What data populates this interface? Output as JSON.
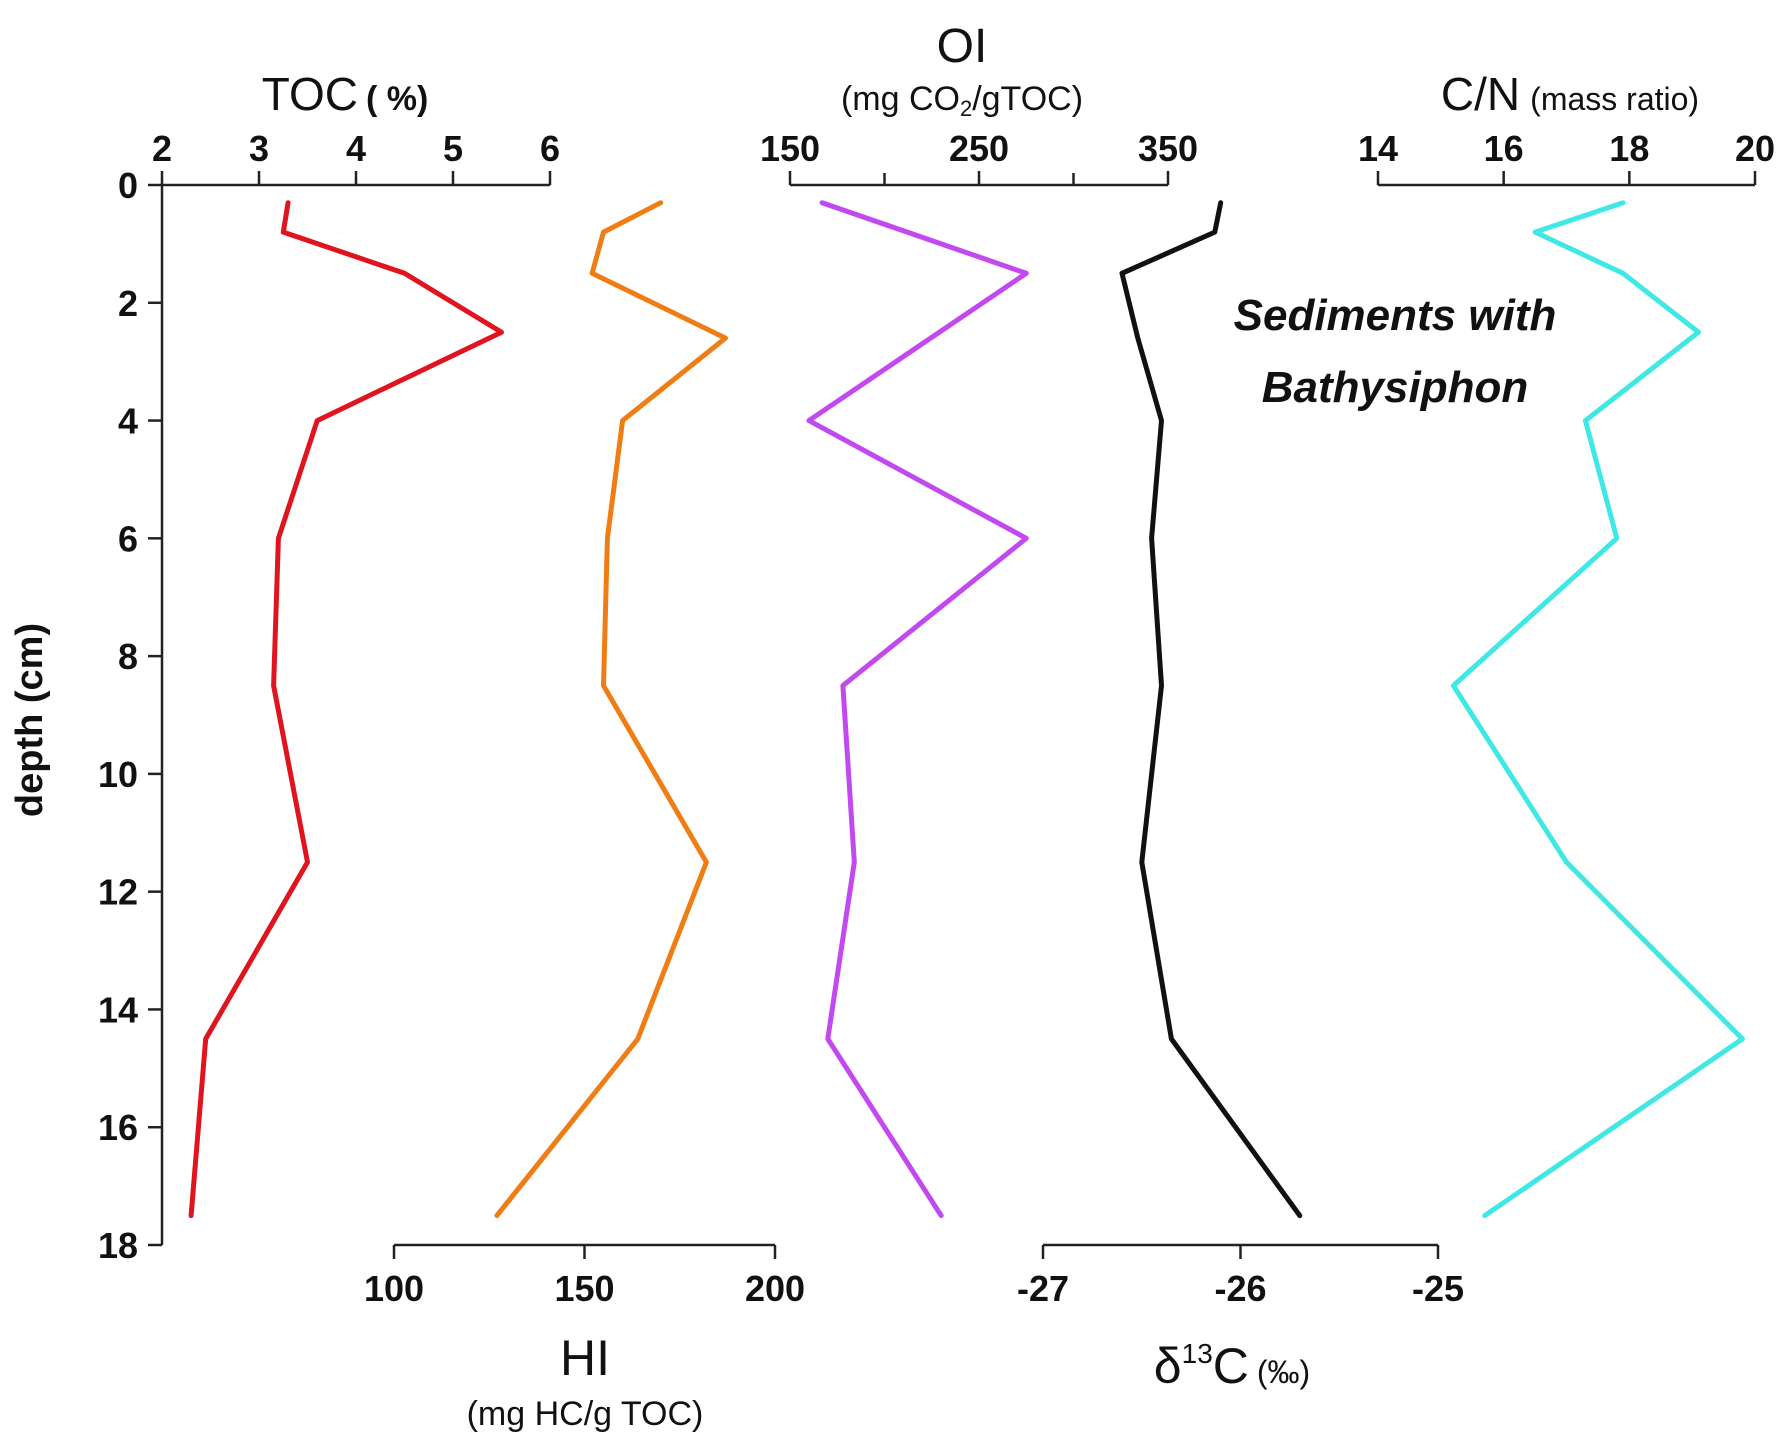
{
  "chart_data": {
    "type": "line",
    "y_axis": {
      "label": "depth (cm)",
      "ticks": [
        0,
        2,
        4,
        6,
        8,
        10,
        12,
        14,
        16,
        18
      ],
      "range": [
        0,
        18
      ],
      "inverted": true
    },
    "annotation": {
      "line1": "Sediments with",
      "line2": "Bathysiphon",
      "style": "bold italic"
    },
    "panels": [
      {
        "id": "toc",
        "title": "TOC",
        "unit": "( %)",
        "axis_position": "top",
        "range": [
          2,
          6
        ],
        "ticks": [
          2,
          3,
          4,
          5,
          6
        ],
        "color": "#e0141e",
        "series": [
          {
            "x": 3.3,
            "depth": 0.3
          },
          {
            "x": 3.25,
            "depth": 0.8
          },
          {
            "x": 4.5,
            "depth": 1.5
          },
          {
            "x": 5.5,
            "depth": 2.5
          },
          {
            "x": 3.6,
            "depth": 4.0
          },
          {
            "x": 3.2,
            "depth": 6.0
          },
          {
            "x": 3.15,
            "depth": 8.5
          },
          {
            "x": 3.5,
            "depth": 11.5
          },
          {
            "x": 2.45,
            "depth": 14.5
          },
          {
            "x": 2.3,
            "depth": 17.5
          }
        ]
      },
      {
        "id": "hi",
        "title": "HI",
        "unit": "(mg HC/g TOC)",
        "axis_position": "bottom",
        "range": [
          100,
          200
        ],
        "ticks": [
          100,
          150,
          200
        ],
        "color": "#ef7d14",
        "series": [
          {
            "x": 170,
            "depth": 0.3
          },
          {
            "x": 155,
            "depth": 0.8
          },
          {
            "x": 152,
            "depth": 1.5
          },
          {
            "x": 187,
            "depth": 2.6
          },
          {
            "x": 160,
            "depth": 4.0
          },
          {
            "x": 156,
            "depth": 6.0
          },
          {
            "x": 155,
            "depth": 8.5
          },
          {
            "x": 182,
            "depth": 11.5
          },
          {
            "x": 164,
            "depth": 14.5
          },
          {
            "x": 127,
            "depth": 17.5
          }
        ]
      },
      {
        "id": "oi",
        "title": "OI",
        "unit": "(mg CO2/gTOC)",
        "axis_position": "top",
        "range": [
          150,
          350
        ],
        "ticks": [
          150,
          250,
          350
        ],
        "color": "#c248ef",
        "series": [
          {
            "x": 167,
            "depth": 0.3
          },
          {
            "x": 275,
            "depth": 1.5
          },
          {
            "x": 160,
            "depth": 4.0
          },
          {
            "x": 275,
            "depth": 6.0
          },
          {
            "x": 178,
            "depth": 8.5
          },
          {
            "x": 184,
            "depth": 11.5
          },
          {
            "x": 170,
            "depth": 14.5
          },
          {
            "x": 230,
            "depth": 17.5
          }
        ]
      },
      {
        "id": "d13c",
        "title": "δ13C",
        "unit": "(‰)",
        "axis_position": "bottom",
        "range": [
          -27,
          -25
        ],
        "ticks": [
          -27,
          -26,
          -25
        ],
        "color": "#111111",
        "series": [
          {
            "x": -26.1,
            "depth": 0.3
          },
          {
            "x": -26.13,
            "depth": 0.8
          },
          {
            "x": -26.6,
            "depth": 1.5
          },
          {
            "x": -26.52,
            "depth": 2.6
          },
          {
            "x": -26.4,
            "depth": 4.0
          },
          {
            "x": -26.45,
            "depth": 6.0
          },
          {
            "x": -26.4,
            "depth": 8.5
          },
          {
            "x": -26.5,
            "depth": 11.5
          },
          {
            "x": -26.35,
            "depth": 14.5
          },
          {
            "x": -25.7,
            "depth": 17.5
          }
        ]
      },
      {
        "id": "cn",
        "title": "C/N",
        "unit": "(mass ratio)",
        "axis_position": "top",
        "range": [
          14,
          20
        ],
        "ticks": [
          14,
          16,
          18,
          20
        ],
        "color": "#3fe8e4",
        "series": [
          {
            "x": 17.9,
            "depth": 0.3
          },
          {
            "x": 16.5,
            "depth": 0.8
          },
          {
            "x": 17.9,
            "depth": 1.5
          },
          {
            "x": 19.1,
            "depth": 2.5
          },
          {
            "x": 17.3,
            "depth": 4.0
          },
          {
            "x": 17.8,
            "depth": 6.0
          },
          {
            "x": 15.2,
            "depth": 8.5
          },
          {
            "x": 17.0,
            "depth": 11.5
          },
          {
            "x": 19.8,
            "depth": 14.5
          },
          {
            "x": 15.7,
            "depth": 17.5
          }
        ]
      }
    ]
  }
}
